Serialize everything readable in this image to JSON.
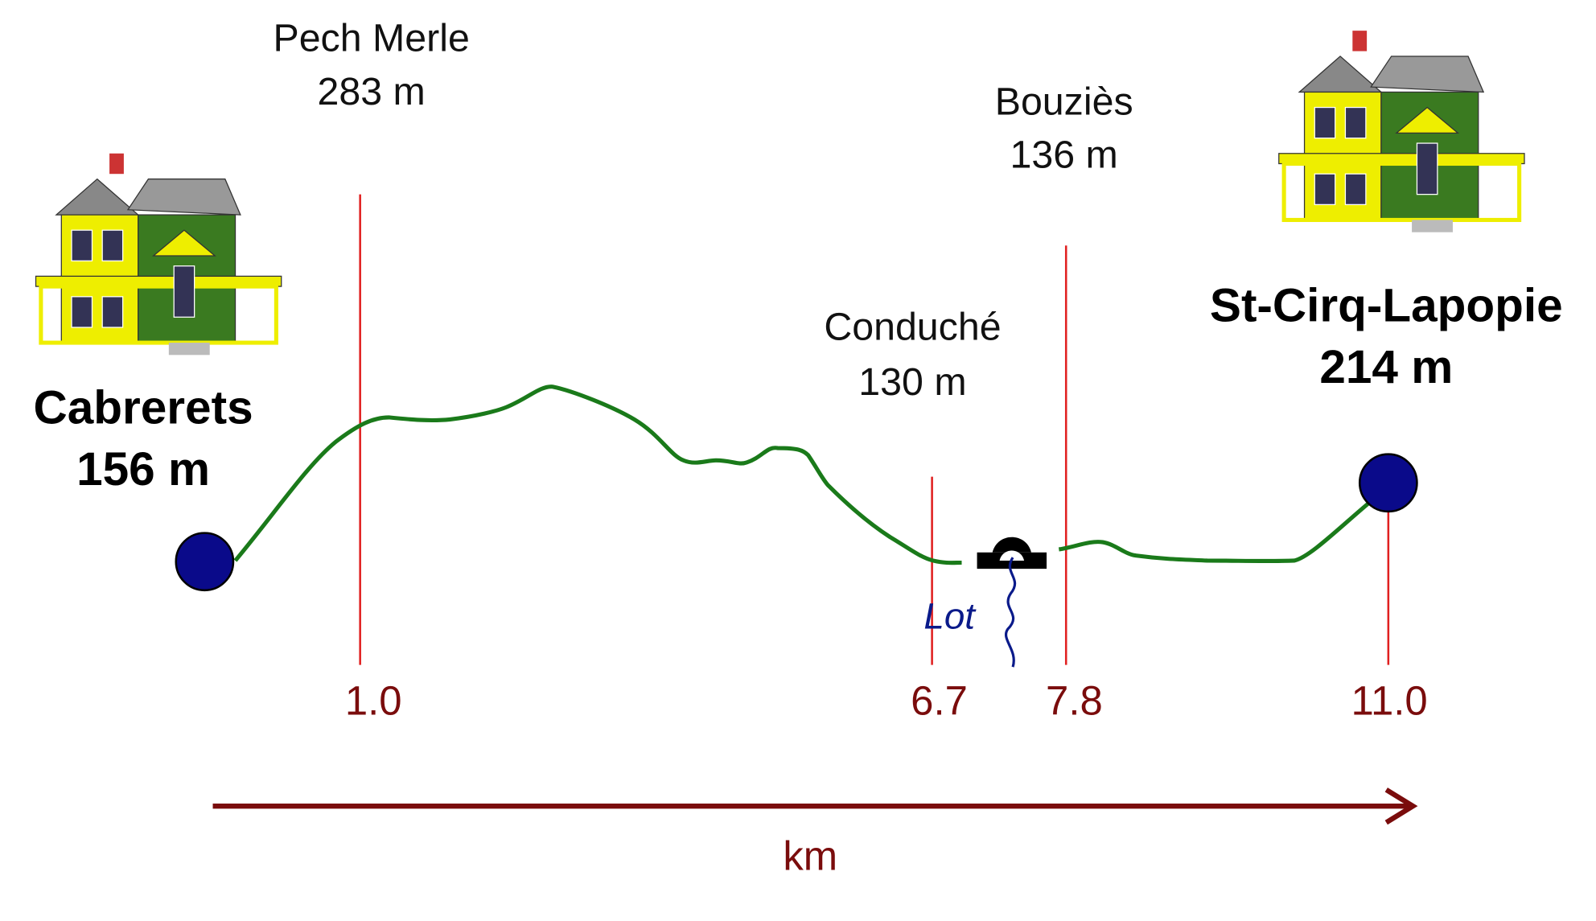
{
  "start": {
    "name": "Cabrerets",
    "elevation": "156 m"
  },
  "end": {
    "name": "St-Cirq-Lapopie",
    "elevation": "214 m"
  },
  "points": [
    {
      "name": "Pech Merle",
      "elevation": "283 m"
    },
    {
      "name": "Conduché",
      "elevation": "130 m"
    },
    {
      "name": "Bouziès",
      "elevation": "136 m"
    }
  ],
  "distances": [
    "1.0",
    "6.7",
    "7.8",
    "11.0"
  ],
  "river": "Lot",
  "axis_label": "km"
}
